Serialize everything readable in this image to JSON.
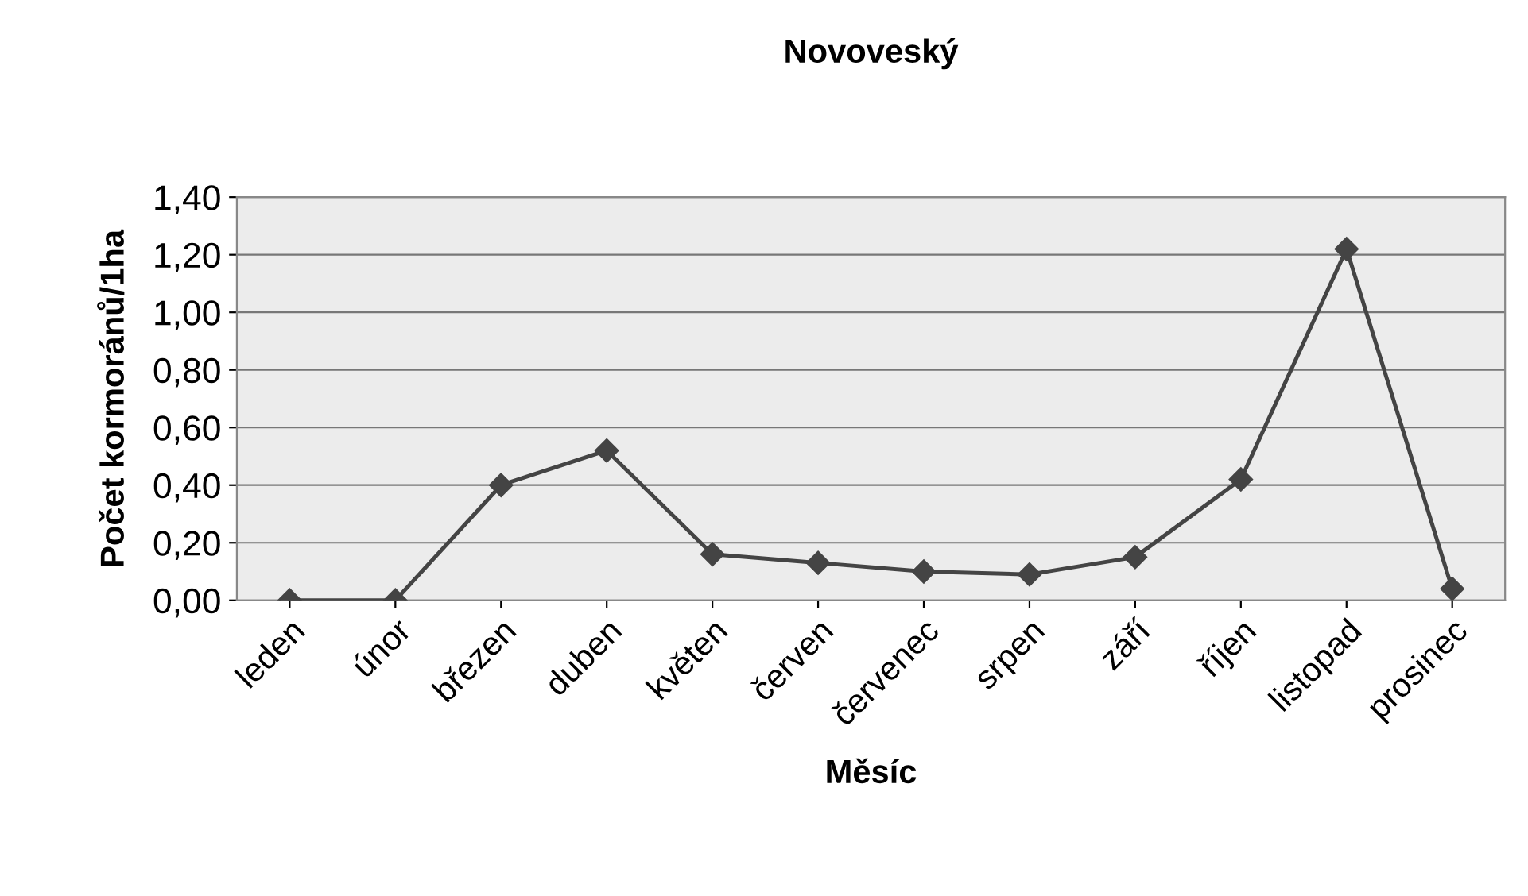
{
  "chart_data": {
    "type": "line",
    "title": "Novoveský",
    "xlabel": "Měsíc",
    "ylabel": "Počet kormoránů/1ha",
    "categories": [
      "leden",
      "únor",
      "březen",
      "duben",
      "květen",
      "červen",
      "červenec",
      "srpen",
      "září",
      "říjen",
      "listopad",
      "prosinec"
    ],
    "series": [
      {
        "color": "#444444",
        "values": [
          0.0,
          0.0,
          0.4,
          0.52,
          0.16,
          0.13,
          0.1,
          0.09,
          0.15,
          0.42,
          1.22,
          0.04
        ]
      }
    ],
    "ylim": [
      0,
      1.4
    ],
    "yticks": [
      {
        "value": 0,
        "label": "0,00"
      },
      {
        "value": 0.2,
        "label": "0,20"
      },
      {
        "value": 0.4,
        "label": "0,40"
      },
      {
        "value": 0.6,
        "label": "0,60"
      },
      {
        "value": 0.8,
        "label": "0,80"
      },
      {
        "value": 1.0,
        "label": "1,00"
      },
      {
        "value": 1.2,
        "label": "1,20"
      },
      {
        "value": 1.4,
        "label": "1,40"
      }
    ],
    "grid": "y",
    "marker": "diamond",
    "line_style": "solid"
  }
}
